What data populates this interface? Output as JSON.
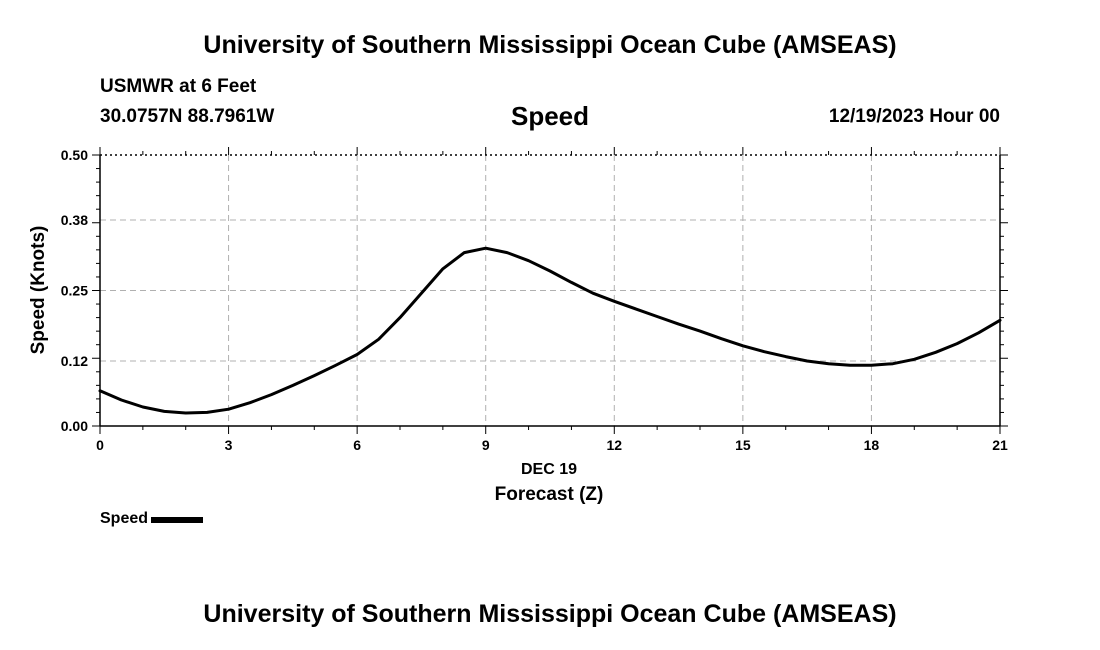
{
  "header": {
    "title": "University of Southern Mississippi Ocean Cube (AMSEAS)",
    "station": "USMWR at 6 Feet",
    "coords": "30.0757N  88.7961W",
    "subtitle": "Speed",
    "datetime": "12/19/2023 Hour 00"
  },
  "footer": {
    "title": "University of Southern Mississippi Ocean Cube (AMSEAS)"
  },
  "legend": {
    "label": "Speed"
  },
  "chart_data": {
    "type": "line",
    "title": "Speed",
    "xlabel": "Forecast (Z)",
    "date_label": "DEC 19",
    "ylabel": "Speed (Knots)",
    "xlim": [
      0,
      21
    ],
    "ylim": [
      0,
      0.5
    ],
    "x_ticks": [
      0,
      3,
      6,
      9,
      12,
      15,
      18,
      21
    ],
    "y_ticks": [
      0.0,
      0.12,
      0.25,
      0.38,
      0.5
    ],
    "y_tick_labels": [
      "0.00",
      "0.12",
      "0.25",
      "0.38",
      "0.50"
    ],
    "grid": true,
    "series": [
      {
        "name": "Speed",
        "color": "#000000",
        "x": [
          0,
          0.5,
          1,
          1.5,
          2,
          2.5,
          3,
          3.5,
          4,
          4.5,
          5,
          5.5,
          6,
          6.5,
          7,
          7.5,
          8,
          8.5,
          9,
          9.5,
          10,
          10.5,
          11,
          11.5,
          12,
          12.5,
          13,
          13.5,
          14,
          14.5,
          15,
          15.5,
          16,
          16.5,
          17,
          17.5,
          18,
          18.5,
          19,
          19.5,
          20,
          20.5,
          21
        ],
        "values": [
          0.065,
          0.048,
          0.035,
          0.027,
          0.024,
          0.025,
          0.031,
          0.043,
          0.058,
          0.075,
          0.093,
          0.112,
          0.132,
          0.16,
          0.2,
          0.245,
          0.29,
          0.32,
          0.328,
          0.32,
          0.305,
          0.286,
          0.265,
          0.245,
          0.23,
          0.216,
          0.202,
          0.188,
          0.175,
          0.161,
          0.148,
          0.137,
          0.128,
          0.12,
          0.115,
          0.112,
          0.112,
          0.115,
          0.123,
          0.136,
          0.152,
          0.172,
          0.195
        ]
      }
    ]
  }
}
